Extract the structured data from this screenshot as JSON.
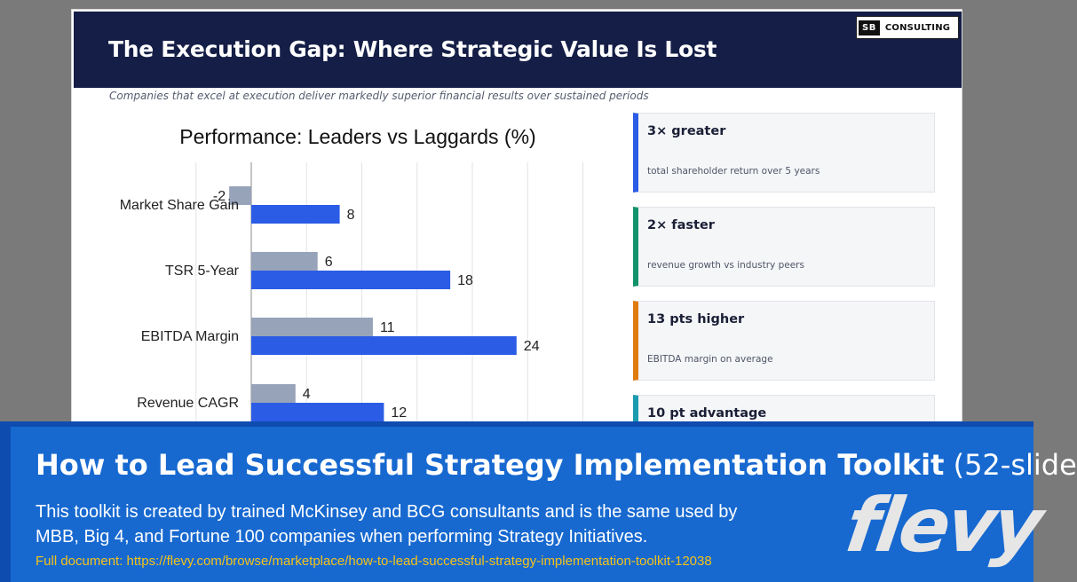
{
  "slide": {
    "title": "The Execution Gap: Where Strategic Value Is Lost",
    "subtitle": "Companies that excel at execution deliver markedly superior financial results over sustained periods",
    "logo": {
      "mark": "SB",
      "text": "CONSULTING"
    }
  },
  "chart_data": {
    "type": "bar",
    "orientation": "horizontal",
    "title": "Performance: Leaders vs Laggards (%)",
    "categories": [
      "Market Share Gain",
      "TSR 5-Year",
      "EBITDA Margin",
      "Revenue CAGR"
    ],
    "series": [
      {
        "values": [
          -2,
          6,
          11,
          4
        ],
        "color": "#97a3b9"
      },
      {
        "values": [
          8,
          18,
          24,
          12
        ],
        "color": "#2b5ce6"
      }
    ],
    "xlim": [
      -5,
      30
    ],
    "grid": true
  },
  "stats": [
    {
      "headline": "3× greater",
      "desc": "total shareholder return over 5 years",
      "color": "#2b5ce6"
    },
    {
      "headline": "2× faster",
      "desc": "revenue growth vs industry peers",
      "color": "#13936b"
    },
    {
      "headline": "13 pts higher",
      "desc": "EBITDA margin on average",
      "color": "#e07b10"
    },
    {
      "headline": "10 pt advantage",
      "desc": "",
      "color": "#1a9bb0"
    }
  ],
  "banner": {
    "title_main": "How to Lead Successful Strategy Implementation Toolkit",
    "title_suffix": "(52-slide",
    "description": "This toolkit is created by trained McKinsey and BCG consultants and is the same used by MBB, Big 4, and Fortune 100 companies when performing Strategy Initiatives.",
    "link": "Full document: https://flevy.com/browse/marketplace/how-to-lead-successful-strategy-implementation-toolkit-12038",
    "brand": "flevy"
  }
}
